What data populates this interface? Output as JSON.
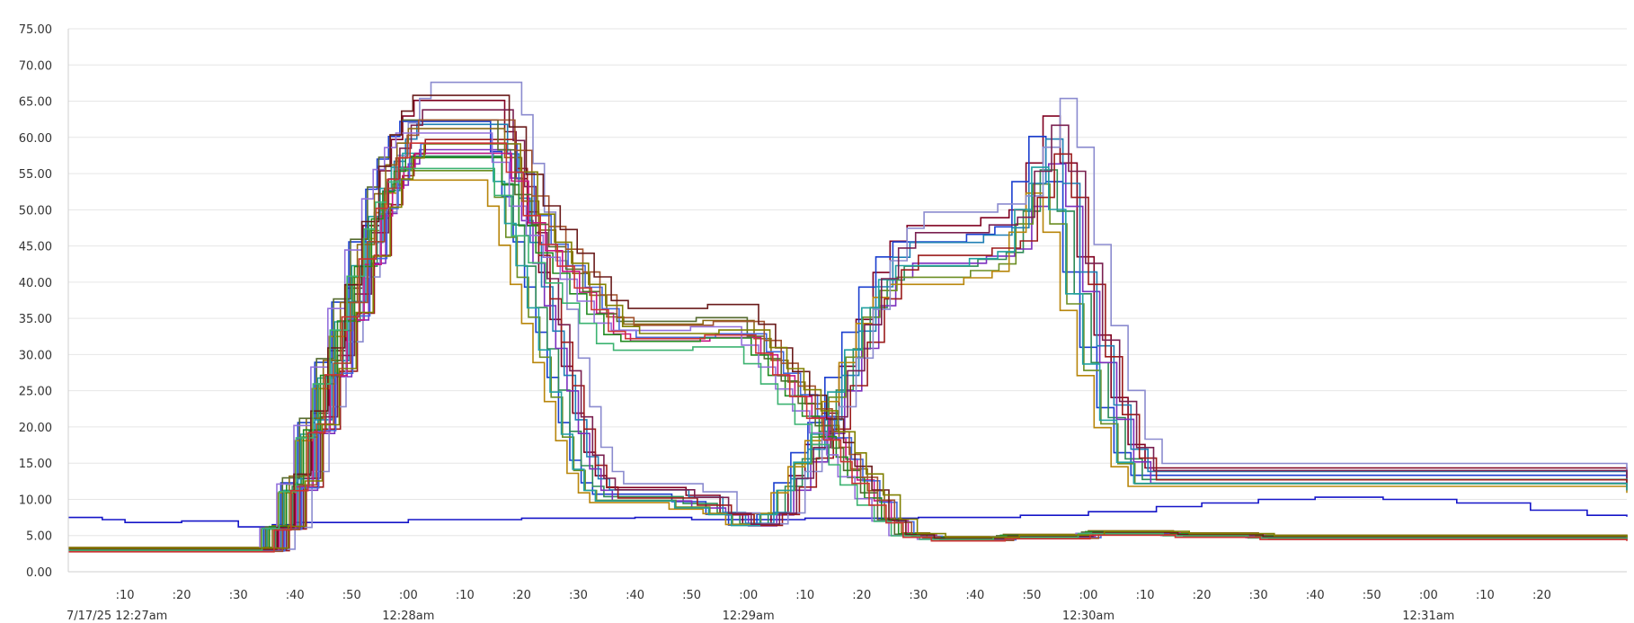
{
  "chart_data": {
    "type": "line",
    "title": "",
    "xlabel": "",
    "ylabel": "",
    "ylim": [
      0,
      75
    ],
    "xlim_seconds": [
      0,
      275
    ],
    "grid": "horizontal",
    "legend": "none",
    "y_ticks": [
      "0.00",
      "5.00",
      "10.00",
      "15.00",
      "20.00",
      "25.00",
      "30.00",
      "35.00",
      "40.00",
      "45.00",
      "50.00",
      "55.00",
      "60.00",
      "65.00",
      "70.00",
      "75.00"
    ],
    "x_ticks": [
      {
        "t": 10,
        "label": ":10"
      },
      {
        "t": 20,
        "label": ":20"
      },
      {
        "t": 30,
        "label": ":30"
      },
      {
        "t": 40,
        "label": ":40"
      },
      {
        "t": 50,
        "label": ":50"
      },
      {
        "t": 60,
        "label": ":00"
      },
      {
        "t": 70,
        "label": ":10"
      },
      {
        "t": 80,
        "label": ":20"
      },
      {
        "t": 90,
        "label": ":30"
      },
      {
        "t": 100,
        "label": ":40"
      },
      {
        "t": 110,
        "label": ":50"
      },
      {
        "t": 120,
        "label": ":00"
      },
      {
        "t": 130,
        "label": ":10"
      },
      {
        "t": 140,
        "label": ":20"
      },
      {
        "t": 150,
        "label": ":30"
      },
      {
        "t": 160,
        "label": ":40"
      },
      {
        "t": 170,
        "label": ":50"
      },
      {
        "t": 180,
        "label": ":00"
      },
      {
        "t": 190,
        "label": ":10"
      },
      {
        "t": 200,
        "label": ":20"
      },
      {
        "t": 210,
        "label": ":30"
      },
      {
        "t": 220,
        "label": ":40"
      },
      {
        "t": 230,
        "label": ":50"
      },
      {
        "t": 240,
        "label": ":00"
      },
      {
        "t": 250,
        "label": ":10"
      },
      {
        "t": 260,
        "label": ":20"
      }
    ],
    "x_major_labels": [
      {
        "t": 0,
        "label": "7/17/25 12:27am",
        "anchor": "start"
      },
      {
        "t": 60,
        "label": "12:28am"
      },
      {
        "t": 120,
        "label": "12:29am"
      },
      {
        "t": 180,
        "label": "12:30am"
      },
      {
        "t": 240,
        "label": "12:31am"
      }
    ],
    "group_a": {
      "description_points": "time in seconds after 12:27:00am, value",
      "template": [
        [
          0,
          3
        ],
        [
          33,
          3
        ],
        [
          36,
          6
        ],
        [
          39,
          12
        ],
        [
          42,
          20
        ],
        [
          45,
          28
        ],
        [
          48,
          36
        ],
        [
          51,
          44
        ],
        [
          54,
          51
        ],
        [
          56,
          55
        ],
        [
          58,
          58
        ],
        [
          60,
          60
        ],
        [
          74,
          60
        ],
        [
          76,
          56
        ],
        [
          78,
          50
        ],
        [
          80,
          44
        ],
        [
          82,
          38
        ],
        [
          84,
          32
        ],
        [
          86,
          26
        ],
        [
          88,
          20
        ],
        [
          90,
          15
        ],
        [
          92,
          12
        ],
        [
          94,
          10.5
        ],
        [
          104,
          10.5
        ],
        [
          108,
          9.5
        ],
        [
          114,
          8
        ],
        [
          118,
          6.5
        ],
        [
          121,
          6.5
        ],
        [
          123,
          8
        ],
        [
          126,
          12
        ],
        [
          129,
          16
        ],
        [
          132,
          20
        ],
        [
          135,
          26
        ],
        [
          138,
          32
        ],
        [
          141,
          38
        ],
        [
          144,
          42
        ],
        [
          147,
          44
        ],
        [
          153,
          44
        ],
        [
          160,
          45
        ],
        [
          165,
          46
        ],
        [
          168,
          52
        ],
        [
          171,
          58
        ],
        [
          174,
          52
        ],
        [
          177,
          40
        ],
        [
          180,
          30
        ],
        [
          183,
          22
        ],
        [
          186,
          16
        ],
        [
          189,
          13
        ],
        [
          275,
          12
        ]
      ]
    },
    "group_b": {
      "template": [
        [
          0,
          3
        ],
        [
          33,
          3
        ],
        [
          36,
          6
        ],
        [
          39,
          12
        ],
        [
          42,
          20
        ],
        [
          45,
          28
        ],
        [
          48,
          36
        ],
        [
          51,
          44
        ],
        [
          54,
          51
        ],
        [
          56,
          55
        ],
        [
          58,
          58
        ],
        [
          60,
          60
        ],
        [
          74,
          60
        ],
        [
          77,
          56
        ],
        [
          80,
          50
        ],
        [
          83,
          46
        ],
        [
          86,
          43
        ],
        [
          89,
          40
        ],
        [
          92,
          37
        ],
        [
          95,
          34
        ],
        [
          98,
          33
        ],
        [
          104,
          33
        ],
        [
          112,
          33.5
        ],
        [
          118,
          33.5
        ],
        [
          121,
          31
        ],
        [
          124,
          28
        ],
        [
          127,
          25
        ],
        [
          130,
          22
        ],
        [
          133,
          19
        ],
        [
          136,
          16
        ],
        [
          138,
          13
        ],
        [
          141,
          10
        ],
        [
          144,
          7
        ],
        [
          147,
          5
        ],
        [
          152,
          4.5
        ],
        [
          165,
          4.8
        ],
        [
          180,
          5.3
        ],
        [
          195,
          5
        ],
        [
          210,
          4.7
        ],
        [
          275,
          4.5
        ]
      ]
    },
    "constant_series": {
      "color": "#1515c8",
      "points": [
        [
          0,
          7.5
        ],
        [
          6,
          7.2
        ],
        [
          10,
          6.8
        ],
        [
          20,
          7
        ],
        [
          30,
          6.2
        ],
        [
          36,
          6.5
        ],
        [
          40,
          6.8
        ],
        [
          60,
          7.2
        ],
        [
          80,
          7.4
        ],
        [
          100,
          7.5
        ],
        [
          110,
          7.2
        ],
        [
          130,
          7.4
        ],
        [
          150,
          7.5
        ],
        [
          168,
          7.8
        ],
        [
          180,
          8.3
        ],
        [
          192,
          9
        ],
        [
          200,
          9.5
        ],
        [
          210,
          10
        ],
        [
          220,
          10.3
        ],
        [
          232,
          10
        ],
        [
          245,
          9.5
        ],
        [
          258,
          8.5
        ],
        [
          268,
          7.8
        ],
        [
          275,
          7.6
        ]
      ]
    },
    "series": [
      {
        "group": "a",
        "color": "#800020",
        "dt": 1.0,
        "scale": 1.08,
        "dv": 0.3
      },
      {
        "group": "a",
        "color": "#1a3ecf",
        "dt": -1.5,
        "scale": 1.04,
        "dv": -0.2
      },
      {
        "group": "a",
        "color": "#2e8b57",
        "dt": 0.5,
        "scale": 0.95,
        "dv": 0.4
      },
      {
        "group": "a",
        "color": "#7b2fbe",
        "dt": 2.0,
        "scale": 0.98,
        "dv": -0.5
      },
      {
        "group": "a",
        "color": "#6b8e23",
        "dt": -0.8,
        "scale": 0.92,
        "dv": 0.2
      },
      {
        "group": "a",
        "color": "#1f7fb5",
        "dt": 1.5,
        "scale": 1.02,
        "dv": 0.6
      },
      {
        "group": "a",
        "color": "#b8860b",
        "dt": -2.0,
        "scale": 0.9,
        "dv": 0.1
      },
      {
        "group": "a",
        "color": "#9b1b1b",
        "dt": 3.0,
        "scale": 1.0,
        "dv": -0.3
      },
      {
        "group": "a",
        "color": "#8b8bcf",
        "dt": 4.0,
        "scale": 1.12,
        "dv": 0.4
      },
      {
        "group": "a",
        "color": "#20a0a0",
        "dt": -1.0,
        "scale": 0.97,
        "dv": -0.4
      },
      {
        "group": "a",
        "color": "#7a2050",
        "dt": 2.5,
        "scale": 1.06,
        "dv": 0.2
      },
      {
        "group": "b",
        "color": "#8b6914",
        "dt": 0.0,
        "scale": 1.0,
        "dv": 1.2
      },
      {
        "group": "b",
        "color": "#c71585",
        "dt": 1.2,
        "scale": 0.96,
        "dv": 0.2
      },
      {
        "group": "b",
        "color": "#556b2f",
        "dt": -1.2,
        "scale": 1.03,
        "dv": 0.6
      },
      {
        "group": "b",
        "color": "#4169e1",
        "dt": 2.2,
        "scale": 0.99,
        "dv": -0.3
      },
      {
        "group": "b",
        "color": "#228b22",
        "dt": -0.5,
        "scale": 0.94,
        "dv": 0.8
      },
      {
        "group": "b",
        "color": "#a0522d",
        "dt": 1.8,
        "scale": 1.05,
        "dv": -0.6
      },
      {
        "group": "b",
        "color": "#9370db",
        "dt": -2.2,
        "scale": 1.01,
        "dv": 0.0
      },
      {
        "group": "b",
        "color": "#6a1b1b",
        "dt": 0.8,
        "scale": 1.09,
        "dv": 0.4
      },
      {
        "group": "b",
        "color": "#3cb371",
        "dt": -1.8,
        "scale": 0.93,
        "dv": -0.1
      },
      {
        "group": "b",
        "color": "#808000",
        "dt": 2.8,
        "scale": 0.97,
        "dv": 0.9
      },
      {
        "group": "b",
        "color": "#cc3333",
        "dt": 0.3,
        "scale": 1.0,
        "dv": -0.8
      }
    ]
  }
}
